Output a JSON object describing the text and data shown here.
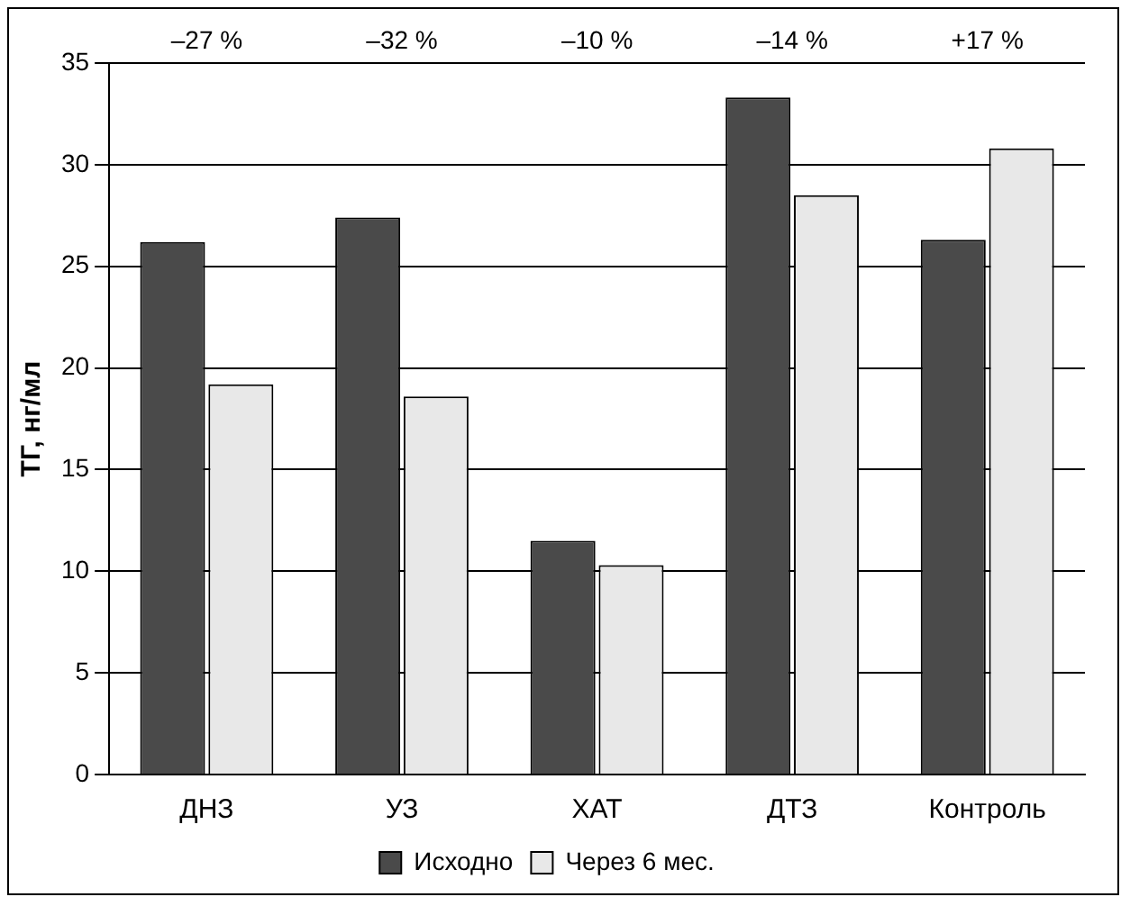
{
  "chart_data": {
    "type": "bar",
    "ylabel": "ТГ, нг/мл",
    "categories": [
      "ДНЗ",
      "УЗ",
      "ХАТ",
      "ДТЗ",
      "Контроль"
    ],
    "series": [
      {
        "name": "Исходно",
        "color": "#4a4a4a",
        "values": [
          26.2,
          27.4,
          11.5,
          33.3,
          26.3
        ]
      },
      {
        "name": "Через 6 мес.",
        "color": "#e8e8e8",
        "values": [
          19.2,
          18.6,
          10.3,
          28.5,
          30.8
        ]
      }
    ],
    "ylim": [
      0,
      35
    ],
    "yticks": [
      0,
      5,
      10,
      15,
      20,
      25,
      30,
      35
    ],
    "grid": "y",
    "legend": "bottom",
    "annotations": [
      "–27 %",
      "–32 %",
      "–10 %",
      "–14 %",
      "+17 %"
    ]
  }
}
